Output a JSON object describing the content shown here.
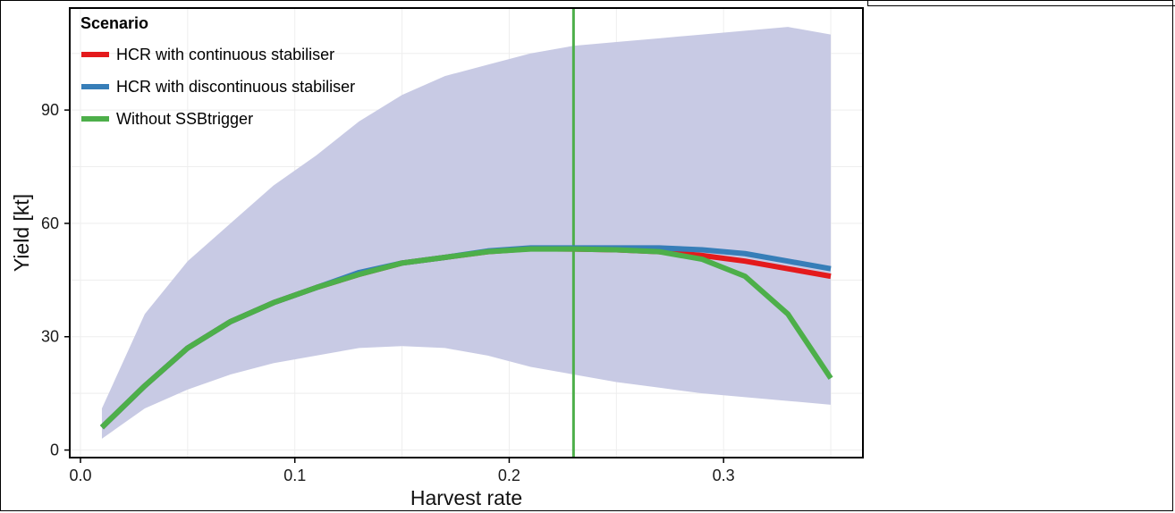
{
  "chart_data": {
    "type": "line",
    "title": "",
    "xlabel": "Harvest rate",
    "ylabel": "Yield [kt]",
    "xlim": [
      -0.005,
      0.365
    ],
    "ylim": [
      -2,
      117
    ],
    "x_ticks": [
      0.0,
      0.1,
      0.2,
      0.3
    ],
    "x_tick_labels": [
      "0.0",
      "0.1",
      "0.2",
      "0.3"
    ],
    "y_ticks": [
      0,
      30,
      60,
      90
    ],
    "y_tick_labels": [
      "0",
      "30",
      "60",
      "90"
    ],
    "grid": true,
    "legend": {
      "title": "Scenario",
      "position": "top-left",
      "entries": [
        {
          "label": "HCR with continuous stabiliser",
          "color": "#e41a1c"
        },
        {
          "label": "HCR with discontinuous stabiliser",
          "color": "#377eb8"
        },
        {
          "label": "Without SSBtrigger",
          "color": "#4daf4a"
        }
      ]
    },
    "vertical_line": {
      "x": 0.23,
      "color": "#4daf4a"
    },
    "band": {
      "color": "#c8cae4",
      "x": [
        0.01,
        0.03,
        0.05,
        0.07,
        0.09,
        0.11,
        0.13,
        0.15,
        0.17,
        0.19,
        0.21,
        0.23,
        0.25,
        0.27,
        0.29,
        0.31,
        0.33,
        0.35
      ],
      "upper": [
        11,
        36,
        50,
        60,
        70,
        78,
        87,
        94,
        99,
        102,
        105,
        107,
        108,
        109,
        110,
        111,
        112,
        110
      ],
      "lower": [
        3,
        11,
        16,
        20,
        23,
        25,
        27,
        27.5,
        27,
        25,
        22,
        20,
        18,
        16.5,
        15,
        14,
        13,
        12
      ]
    },
    "x": [
      0.01,
      0.03,
      0.05,
      0.07,
      0.09,
      0.11,
      0.13,
      0.15,
      0.17,
      0.19,
      0.21,
      0.23,
      0.25,
      0.27,
      0.29,
      0.31,
      0.33,
      0.35
    ],
    "series": [
      {
        "name": "HCR with continuous stabiliser",
        "color": "#e41a1c",
        "values": [
          6,
          17,
          27,
          34,
          39,
          43,
          46.5,
          49.5,
          51,
          52.5,
          53.3,
          53.2,
          53,
          52.5,
          51.5,
          50,
          48,
          46
        ]
      },
      {
        "name": "HCR with discontinuous stabiliser",
        "color": "#377eb8",
        "values": [
          6,
          17,
          27,
          34,
          39,
          43,
          47,
          49.5,
          51,
          52.7,
          53.5,
          53.5,
          53.5,
          53.5,
          53,
          52,
          50,
          48
        ]
      },
      {
        "name": "Without SSBtrigger",
        "color": "#4daf4a",
        "values": [
          6,
          17,
          27,
          34,
          39,
          43,
          46.5,
          49.5,
          51,
          52.5,
          53.2,
          53.2,
          53,
          52.5,
          50.5,
          46,
          36,
          19
        ]
      }
    ]
  }
}
